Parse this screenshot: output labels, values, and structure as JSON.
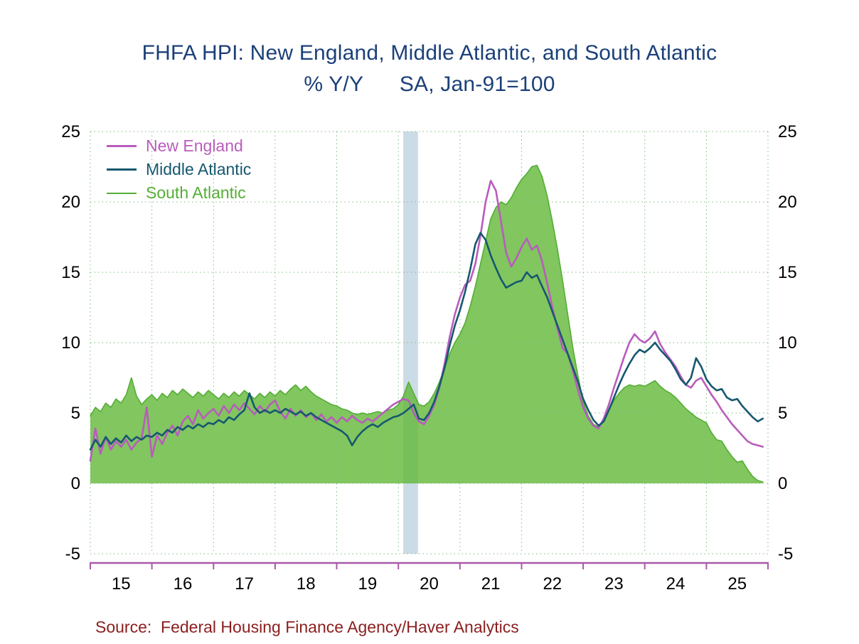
{
  "chart": {
    "title": "FHFA HPI: New England, Middle Atlantic, and South Atlantic",
    "subtitle": "% Y/Y      SA, Jan-91=100",
    "source": "Source:  Federal Housing Finance Agency/Haver Analytics",
    "title_color": "#1b4079",
    "source_color": "#8b1e1e",
    "tick_text_color": "#000000"
  },
  "chart_data": {
    "type": "line",
    "title": "FHFA HPI: New England, Middle Atlantic, and South Atlantic",
    "subtitle": "% Y/Y  SA, Jan-91=100",
    "x_start_year": 2015,
    "x_months_per_point": 1,
    "x_axis": {
      "min": 2015.0,
      "max": 2026.0,
      "tick_years": [
        2015,
        2016,
        2017,
        2018,
        2019,
        2020,
        2021,
        2022,
        2023,
        2024,
        2025,
        2026
      ],
      "tick_labels": [
        "15",
        "16",
        "17",
        "18",
        "19",
        "20",
        "21",
        "22",
        "23",
        "24",
        "25"
      ]
    },
    "y_axis": {
      "min": -5,
      "max": 25,
      "ticks": [
        -5,
        0,
        5,
        10,
        15,
        20,
        25
      ]
    },
    "grid": "dotted",
    "grid_color": "#7cbc7c",
    "axis_color": "#a85aa8",
    "legend_position": "top-left",
    "recession_band": {
      "x_from": 2020.08,
      "x_to": 2020.32,
      "color": "#ccdce6"
    },
    "series": [
      {
        "name": "New England",
        "type": "line",
        "color": "#b95cbd",
        "values": [
          1.6,
          3.9,
          2.1,
          3.3,
          2.4,
          3.0,
          2.6,
          3.1,
          2.4,
          2.9,
          3.2,
          5.4,
          1.9,
          3.4,
          2.8,
          3.6,
          4.1,
          3.4,
          4.4,
          4.8,
          4.2,
          5.2,
          4.6,
          5.0,
          5.3,
          4.8,
          5.5,
          5.0,
          5.6,
          5.2,
          5.7,
          5.3,
          4.9,
          5.5,
          5.1,
          5.6,
          5.9,
          5.1,
          4.6,
          5.3,
          4.8,
          5.2,
          4.7,
          5.0,
          4.5,
          4.9,
          4.4,
          4.7,
          4.3,
          4.7,
          4.4,
          4.8,
          4.5,
          4.3,
          4.6,
          4.4,
          4.7,
          5.0,
          5.3,
          5.6,
          5.8,
          6.0,
          5.9,
          5.0,
          4.4,
          4.2,
          4.8,
          5.6,
          6.8,
          8.5,
          10.4,
          12.0,
          13.2,
          14.1,
          14.4,
          15.6,
          17.6,
          20.0,
          21.5,
          20.8,
          18.6,
          16.4,
          15.4,
          16.0,
          16.8,
          17.4,
          16.6,
          16.9,
          15.8,
          14.2,
          12.5,
          11.0,
          9.6,
          9.2,
          8.0,
          6.6,
          5.4,
          4.6,
          4.1,
          3.9,
          4.6,
          5.6,
          6.8,
          7.9,
          9.0,
          10.0,
          10.6,
          10.2,
          10.0,
          10.3,
          10.8,
          9.9,
          9.3,
          8.8,
          8.3,
          7.6,
          7.0,
          6.8,
          7.3,
          7.5,
          6.9,
          6.3,
          5.8,
          5.2,
          4.7,
          4.2,
          3.8,
          3.4,
          3.0,
          2.8,
          2.7,
          2.6
        ]
      },
      {
        "name": "Middle Atlantic",
        "type": "line",
        "color": "#16586f",
        "values": [
          2.4,
          3.1,
          2.6,
          3.3,
          2.8,
          3.2,
          2.9,
          3.4,
          3.0,
          3.3,
          3.1,
          3.4,
          3.3,
          3.6,
          3.4,
          3.8,
          3.6,
          4.0,
          3.8,
          4.1,
          3.9,
          4.2,
          4.0,
          4.3,
          4.2,
          4.5,
          4.3,
          4.7,
          4.5,
          4.9,
          5.2,
          6.4,
          5.4,
          5.0,
          5.2,
          5.0,
          5.2,
          5.0,
          5.3,
          5.1,
          4.9,
          5.1,
          4.8,
          5.0,
          4.7,
          4.5,
          4.3,
          4.1,
          3.9,
          3.7,
          3.4,
          2.7,
          3.3,
          3.7,
          4.0,
          4.2,
          4.0,
          4.3,
          4.5,
          4.7,
          4.8,
          5.0,
          5.3,
          5.6,
          4.6,
          4.5,
          5.0,
          5.8,
          6.9,
          8.2,
          9.8,
          11.2,
          12.3,
          13.6,
          15.2,
          17.0,
          17.8,
          17.3,
          16.2,
          15.3,
          14.5,
          13.9,
          14.1,
          14.3,
          14.4,
          15.0,
          14.6,
          14.8,
          14.0,
          13.2,
          12.2,
          11.2,
          10.2,
          9.2,
          8.2,
          7.2,
          6.0,
          5.2,
          4.5,
          4.1,
          4.4,
          5.2,
          6.1,
          7.0,
          7.8,
          8.5,
          9.1,
          9.5,
          9.3,
          9.6,
          10.0,
          9.5,
          9.1,
          8.7,
          8.1,
          7.4,
          7.0,
          7.5,
          8.9,
          8.3,
          7.4,
          6.9,
          6.6,
          6.7,
          6.1,
          5.9,
          6.0,
          5.5,
          5.1,
          4.7,
          4.4,
          4.6
        ]
      },
      {
        "name": "South Atlantic",
        "type": "area",
        "color": "#54ae35",
        "fill": "#62b837",
        "values": [
          4.8,
          5.4,
          5.1,
          5.7,
          5.4,
          6.0,
          5.7,
          6.3,
          7.5,
          6.2,
          5.6,
          6.0,
          6.3,
          5.9,
          6.4,
          6.1,
          6.6,
          6.3,
          6.7,
          6.4,
          6.1,
          6.5,
          6.2,
          6.6,
          6.3,
          6.0,
          6.4,
          6.1,
          6.5,
          6.2,
          6.6,
          6.3,
          6.0,
          6.4,
          6.1,
          6.5,
          6.2,
          6.6,
          6.3,
          6.7,
          7.0,
          6.6,
          6.9,
          6.5,
          6.2,
          6.0,
          5.8,
          5.6,
          5.5,
          5.3,
          5.2,
          5.0,
          4.9,
          5.0,
          4.9,
          5.0,
          5.1,
          5.0,
          5.2,
          5.3,
          5.6,
          6.2,
          7.2,
          6.4,
          5.6,
          5.5,
          5.8,
          6.4,
          7.2,
          8.2,
          9.2,
          10.0,
          10.6,
          11.4,
          12.6,
          14.0,
          15.6,
          17.2,
          18.8,
          19.6,
          20.0,
          19.8,
          20.3,
          21.0,
          21.6,
          22.0,
          22.5,
          22.6,
          21.8,
          20.4,
          18.6,
          16.6,
          14.4,
          12.0,
          9.6,
          7.6,
          5.8,
          4.8,
          4.2,
          4.0,
          4.4,
          5.2,
          5.9,
          6.4,
          6.8,
          7.0,
          6.9,
          7.0,
          6.9,
          7.1,
          7.3,
          6.9,
          6.6,
          6.4,
          6.1,
          5.7,
          5.3,
          5.0,
          4.7,
          4.5,
          4.3,
          3.6,
          3.1,
          3.0,
          2.4,
          1.9,
          1.5,
          1.6,
          1.0,
          0.5,
          0.2,
          0.1
        ]
      }
    ]
  }
}
